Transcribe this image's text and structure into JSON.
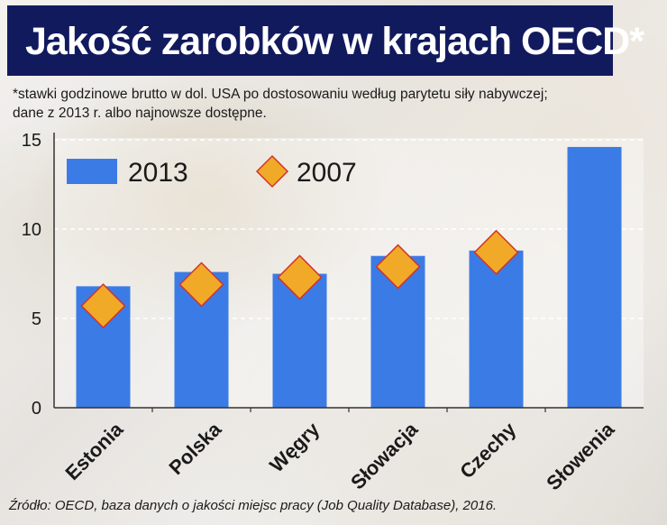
{
  "title": "Jakość zarobków w krajach OECD*",
  "subtitle_lines": [
    "*stawki godzinowe brutto w dol. USA po dostosowaniu według parytetu siły nabywczej;",
    "dane z 2013 r. albo najnowsze dostępne."
  ],
  "source": "Źródło: OECD, baza danych o jakości miejsc pracy (Job Quality Database), 2016.",
  "colors": {
    "title_bg": "#121a5e",
    "bar": "#3b7be6",
    "diamond": "#f0aa28",
    "diamond_stroke": "#d2332a"
  },
  "chart_data": {
    "type": "bar",
    "categories": [
      "Estonia",
      "Polska",
      "Węgry",
      "Słowacja",
      "Czechy",
      "Słowenia"
    ],
    "series": [
      {
        "name": "2013",
        "type": "bar",
        "values": [
          6.8,
          7.6,
          7.5,
          8.5,
          8.8,
          14.6
        ]
      },
      {
        "name": "2007",
        "type": "scatter",
        "marker": "diamond",
        "values": [
          5.7,
          6.9,
          7.3,
          7.9,
          8.7,
          null
        ]
      }
    ],
    "yticks": [
      0,
      5,
      10,
      15
    ],
    "ylim": [
      0,
      15
    ],
    "grid": true,
    "legend": "top-left"
  }
}
